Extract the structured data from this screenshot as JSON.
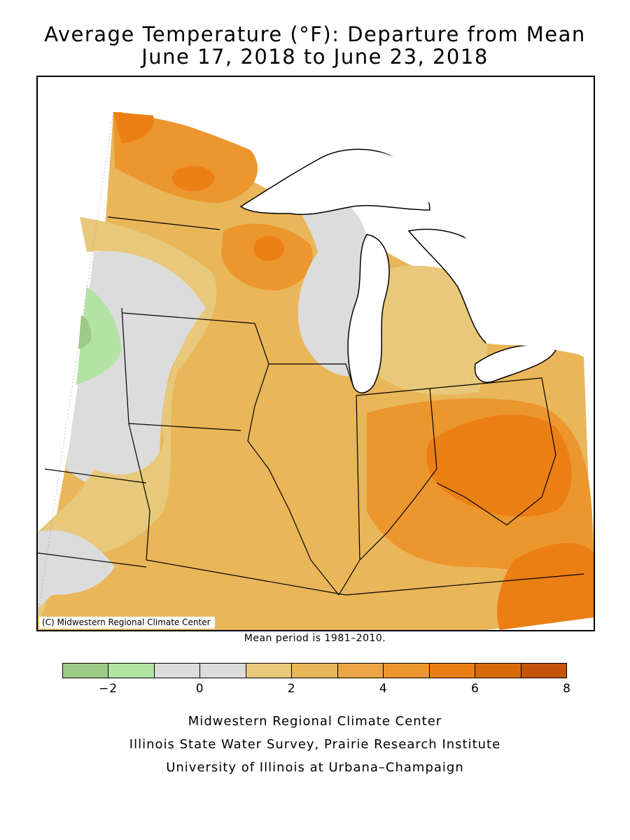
{
  "title": {
    "line1": "Average Temperature (°F): Departure from Mean",
    "line2": "June 17, 2018 to June 23, 2018"
  },
  "map": {
    "copyright": "(C) Midwestern Regional Climate Center",
    "mean_period": "Mean period is 1981–2010."
  },
  "legend": {
    "bin_colors": [
      "#9ccb87",
      "#b3e3a2",
      "#dcdcdc",
      "#dcdcdc",
      "#e8c87a",
      "#e9b65a",
      "#eba546",
      "#ec962e",
      "#ec7f14",
      "#d86a0a",
      "#c4550a"
    ],
    "tick_labels": [
      "−2",
      "0",
      "2",
      "4",
      "6",
      "8"
    ],
    "tick_values": [
      -2,
      0,
      2,
      4,
      6,
      8
    ],
    "min": -3,
    "max": 8
  },
  "credits": {
    "line1": "Midwestern Regional Climate Center",
    "line2": "Illinois State Water Survey, Prairie Research Institute",
    "line3": "University of Illinois at Urbana–Champaign"
  }
}
